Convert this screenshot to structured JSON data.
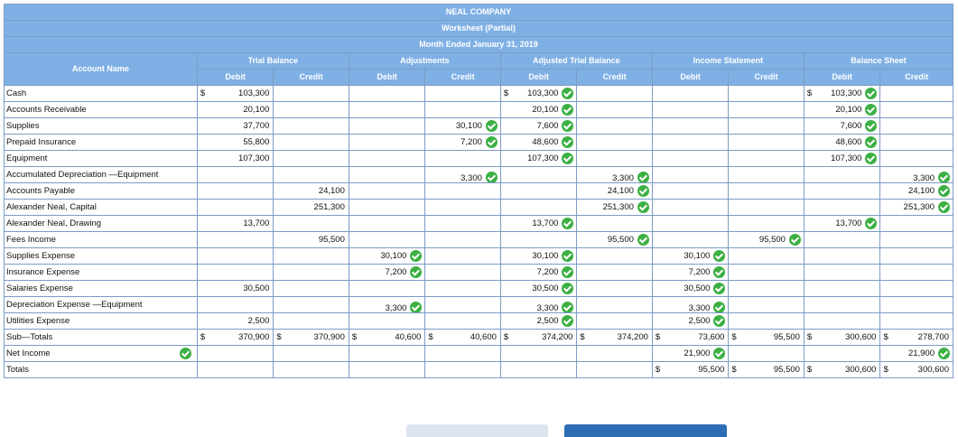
{
  "header": {
    "company": "NEAL COMPANY",
    "title": "Worksheet (Partial)",
    "period": "Month Ended January 31, 2019",
    "account_name": "Account Name",
    "groups": [
      "Trial Balance",
      "Adjustments",
      "Adjusted Trial Balance",
      "Income Statement",
      "Balance Sheet"
    ],
    "debit": "Debit",
    "credit": "Credit"
  },
  "rows": [
    {
      "name": "Cash",
      "cells": [
        {
          "v": "103,300",
          "c": "$"
        },
        null,
        null,
        null,
        {
          "v": "103,300",
          "c": "$",
          "k": true
        },
        null,
        null,
        null,
        {
          "v": "103,300",
          "c": "$",
          "k": true
        },
        null
      ]
    },
    {
      "name": "Accounts Receivable",
      "cells": [
        {
          "v": "20,100"
        },
        null,
        null,
        null,
        {
          "v": "20,100",
          "k": true
        },
        null,
        null,
        null,
        {
          "v": "20,100",
          "k": true
        },
        null
      ]
    },
    {
      "name": "Supplies",
      "cells": [
        {
          "v": "37,700"
        },
        null,
        null,
        {
          "v": "30,100",
          "k": true
        },
        {
          "v": "7,600",
          "k": true
        },
        null,
        null,
        null,
        {
          "v": "7,600",
          "k": true
        },
        null
      ]
    },
    {
      "name": "Prepaid Insurance",
      "cells": [
        {
          "v": "55,800"
        },
        null,
        null,
        {
          "v": "7,200",
          "k": true
        },
        {
          "v": "48,600",
          "k": true
        },
        null,
        null,
        null,
        {
          "v": "48,600",
          "k": true
        },
        null
      ]
    },
    {
      "name": "Equipment",
      "cells": [
        {
          "v": "107,300"
        },
        null,
        null,
        null,
        {
          "v": "107,300",
          "k": true
        },
        null,
        null,
        null,
        {
          "v": "107,300",
          "k": true
        },
        null
      ]
    },
    {
      "name": "Accumulated Depreciation —Equipment",
      "tall": true,
      "cells": [
        null,
        null,
        null,
        {
          "v": "3,300",
          "k": true
        },
        null,
        {
          "v": "3,300",
          "k": true
        },
        null,
        null,
        null,
        {
          "v": "3,300",
          "k": true
        }
      ]
    },
    {
      "name": "Accounts Payable",
      "cells": [
        null,
        {
          "v": "24,100"
        },
        null,
        null,
        null,
        {
          "v": "24,100",
          "k": true
        },
        null,
        null,
        null,
        {
          "v": "24,100",
          "k": true
        }
      ]
    },
    {
      "name": "Alexander Neal, Capital",
      "cells": [
        null,
        {
          "v": "251,300"
        },
        null,
        null,
        null,
        {
          "v": "251,300",
          "k": true
        },
        null,
        null,
        null,
        {
          "v": "251,300",
          "k": true
        }
      ]
    },
    {
      "name": "Alexander Neal, Drawing",
      "cells": [
        {
          "v": "13,700"
        },
        null,
        null,
        null,
        {
          "v": "13,700",
          "k": true
        },
        null,
        null,
        null,
        {
          "v": "13,700",
          "k": true
        },
        null
      ]
    },
    {
      "name": "Fees Income",
      "cells": [
        null,
        {
          "v": "95,500"
        },
        null,
        null,
        null,
        {
          "v": "95,500",
          "k": true
        },
        null,
        {
          "v": "95,500",
          "k": true
        },
        null,
        null
      ]
    },
    {
      "name": "Supplies Expense",
      "cells": [
        null,
        null,
        {
          "v": "30,100",
          "k": true
        },
        null,
        {
          "v": "30,100",
          "k": true
        },
        null,
        {
          "v": "30,100",
          "k": true
        },
        null,
        null,
        null
      ]
    },
    {
      "name": "Insurance Expense",
      "cells": [
        null,
        null,
        {
          "v": "7,200",
          "k": true
        },
        null,
        {
          "v": "7,200",
          "k": true
        },
        null,
        {
          "v": "7,200",
          "k": true
        },
        null,
        null,
        null
      ]
    },
    {
      "name": "Salaries Expense",
      "cells": [
        {
          "v": "30,500"
        },
        null,
        null,
        null,
        {
          "v": "30,500",
          "k": true
        },
        null,
        {
          "v": "30,500",
          "k": true
        },
        null,
        null,
        null
      ]
    },
    {
      "name": "Depreciation Expense —Equipment",
      "tall": true,
      "cells": [
        null,
        null,
        {
          "v": "3,300",
          "k": true
        },
        null,
        {
          "v": "3,300",
          "k": true
        },
        null,
        {
          "v": "3,300",
          "k": true
        },
        null,
        null,
        null
      ]
    },
    {
      "name": "Utilities Expense",
      "cells": [
        {
          "v": "2,500"
        },
        null,
        null,
        null,
        {
          "v": "2,500",
          "k": true
        },
        null,
        {
          "v": "2,500",
          "k": true
        },
        null,
        null,
        null
      ]
    },
    {
      "name": "Sub—Totals",
      "cells": [
        {
          "v": "370,900",
          "c": "$"
        },
        {
          "v": "370,900",
          "c": "$"
        },
        {
          "v": "40,600",
          "c": "$"
        },
        {
          "v": "40,600",
          "c": "$"
        },
        {
          "v": "374,200",
          "c": "$"
        },
        {
          "v": "374,200",
          "c": "$"
        },
        {
          "v": "73,600",
          "c": "$"
        },
        {
          "v": "95,500",
          "c": "$"
        },
        {
          "v": "300,600",
          "c": "$"
        },
        {
          "v": "278,700",
          "c": "$"
        }
      ]
    },
    {
      "name": "Net Income",
      "name_check": true,
      "cells": [
        null,
        null,
        null,
        null,
        null,
        null,
        {
          "v": "21,900",
          "k": true
        },
        null,
        null,
        {
          "v": "21,900",
          "k": true
        }
      ]
    },
    {
      "name": "Totals",
      "cells": [
        null,
        null,
        null,
        null,
        null,
        null,
        {
          "v": "95,500",
          "c": "$"
        },
        {
          "v": "95,500",
          "c": "$"
        },
        {
          "v": "300,600",
          "c": "$"
        },
        {
          "v": "300,600",
          "c": "$"
        }
      ]
    }
  ],
  "colors": {
    "header_bg": "#7fb0e5",
    "border": "#7a9cc6",
    "check": "#3cb043",
    "button_primary": "#2e6db4",
    "button_secondary": "#dce5ef"
  },
  "icons": {
    "correct": "check-circle-icon"
  }
}
